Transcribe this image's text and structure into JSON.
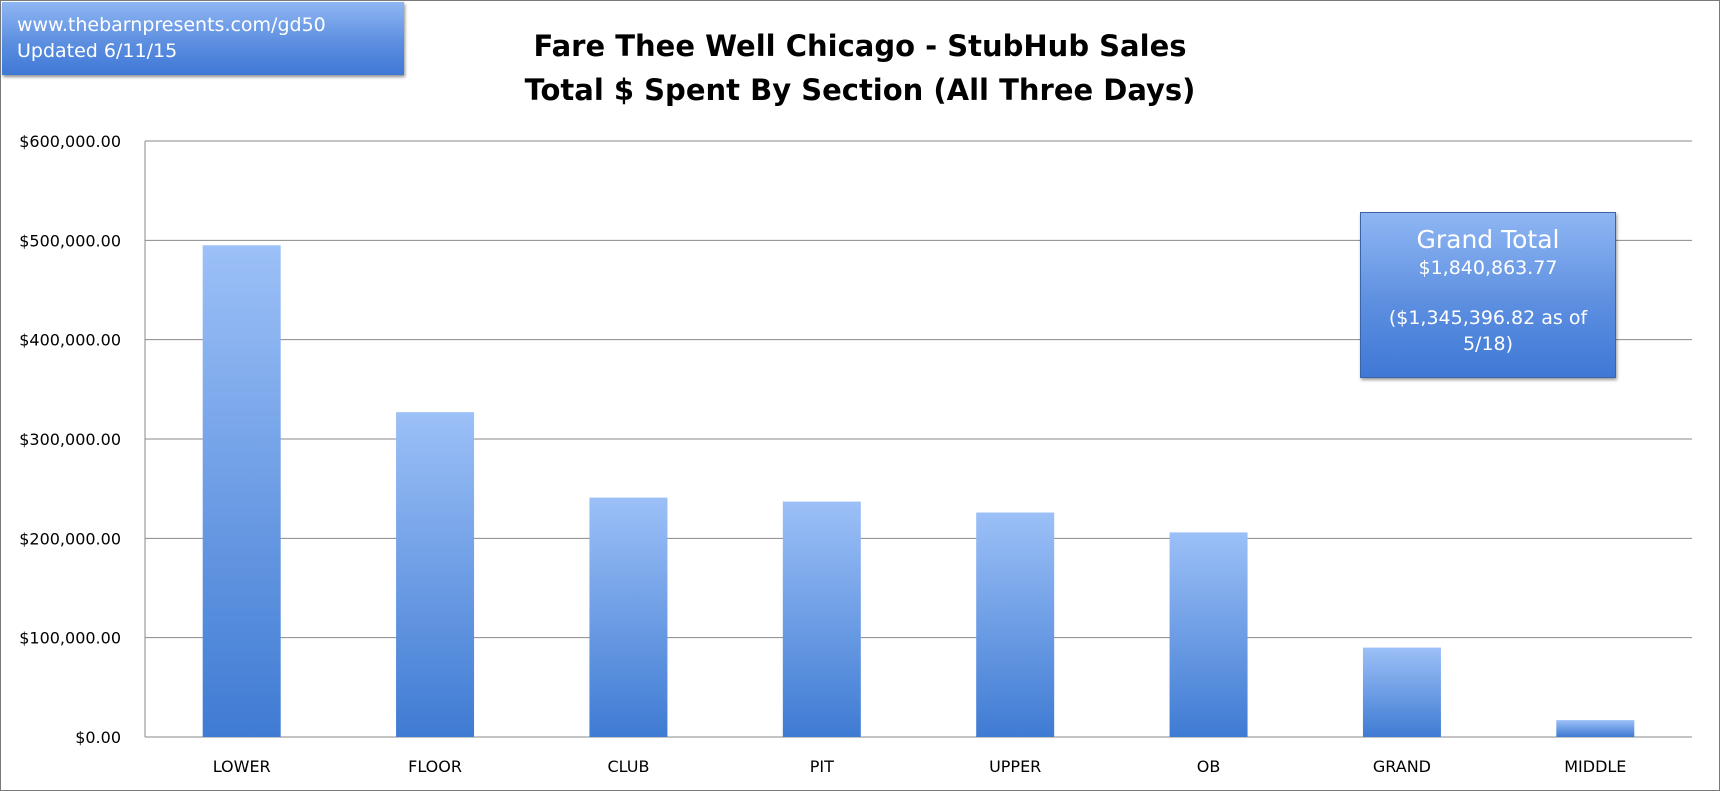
{
  "source": {
    "url": "www.thebarnpresents.com/gd50",
    "updated": "Updated 6/11/15"
  },
  "annotation": {
    "title": "Grand Total",
    "value": "$1,840,863.77",
    "note": "($1,345,396.82 as of 5/18)"
  },
  "chart_data": {
    "type": "bar",
    "title": "Fare Thee Well Chicago - StubHub Sales",
    "subtitle": "Total $ Spent By Section (All Three Days)",
    "xlabel": "",
    "ylabel": "",
    "categories": [
      "LOWER",
      "FLOOR",
      "CLUB",
      "PIT",
      "UPPER",
      "OB",
      "GRAND",
      "MIDDLE"
    ],
    "values": [
      495000,
      327000,
      241000,
      237000,
      226000,
      206000,
      90000,
      17000
    ],
    "ylim": [
      0,
      600000
    ],
    "yticks": [
      0,
      100000,
      200000,
      300000,
      400000,
      500000,
      600000
    ],
    "ytick_labels": [
      "$0.00",
      "$100,000.00",
      "$200,000.00",
      "$300,000.00",
      "$400,000.00",
      "$500,000.00",
      "$600,000.00"
    ],
    "grid": true,
    "legend": "none",
    "bar_color_top": "#9cc0f7",
    "bar_color_bottom": "#3f7bd3"
  }
}
